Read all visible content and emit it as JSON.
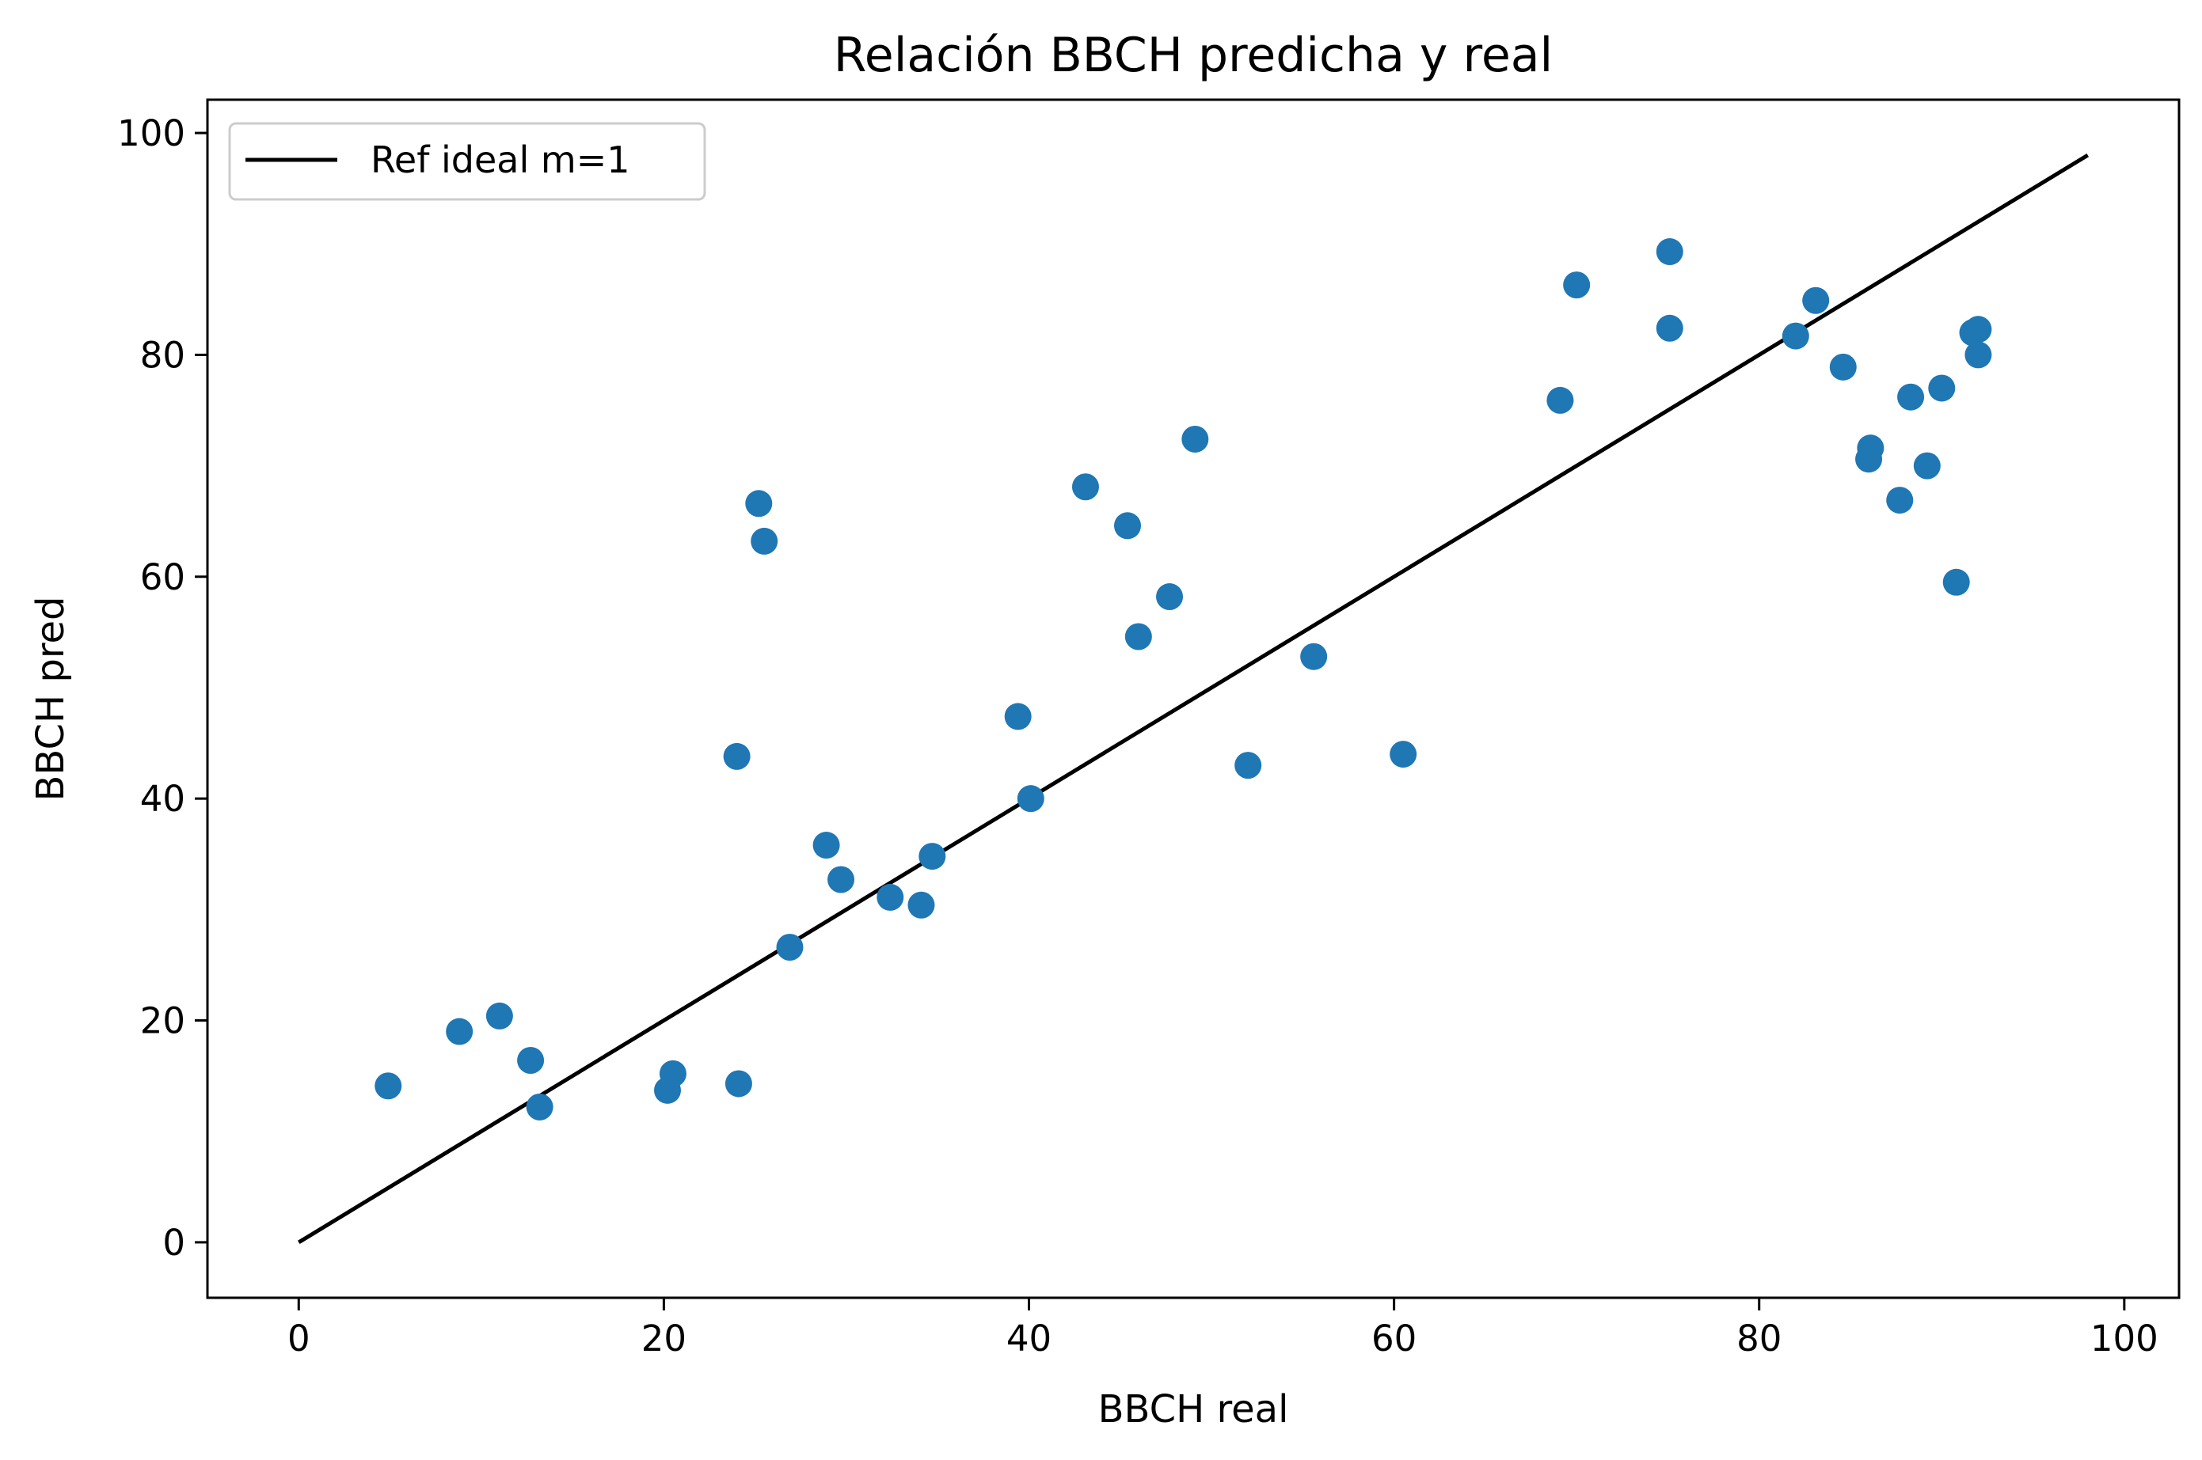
{
  "chart_data": {
    "type": "scatter",
    "title": "Relación BBCH predicha y real",
    "xlabel": "BBCH real",
    "ylabel": "BBCH pred",
    "xlim": [
      -5,
      103
    ],
    "ylim": [
      -5,
      103
    ],
    "xticks": [
      0,
      20,
      40,
      60,
      80,
      100
    ],
    "yticks": [
      0,
      20,
      40,
      60,
      80,
      100
    ],
    "xtick_labels": [
      "0",
      "20",
      "40",
      "60",
      "80",
      "100"
    ],
    "ytick_labels": [
      "0",
      "20",
      "40",
      "60",
      "80",
      "100"
    ],
    "grid": false,
    "legend": {
      "position": "top-left",
      "entries": [
        "Ref ideal m=1"
      ]
    },
    "colors": {
      "points": "#1f77b4",
      "reference_line": "#000000",
      "axes": "#000000",
      "legend_border": "#cccccc"
    },
    "reference_line": {
      "name": "Ref ideal m=1",
      "x": [
        0,
        98
      ],
      "y": [
        0,
        98
      ]
    },
    "series": [
      {
        "x": [
          4.9,
          8.8,
          11.0,
          12.7,
          13.2,
          20.2,
          20.5,
          24.1,
          24.0,
          25.2,
          25.5,
          26.9,
          28.9,
          29.7,
          32.4,
          34.1,
          34.7,
          39.4,
          40.1,
          43.1,
          45.4,
          46.0,
          47.7,
          49.1,
          52.0,
          55.6,
          60.5,
          69.1,
          70.0,
          75.1,
          75.1,
          82.0,
          83.1,
          84.6,
          86.0,
          86.1,
          87.7,
          88.3,
          89.2,
          90.0,
          90.8,
          91.7,
          92.0,
          92.0
        ],
        "y": [
          14.1,
          19.0,
          20.4,
          16.4,
          12.2,
          13.7,
          15.2,
          14.3,
          43.8,
          66.6,
          63.2,
          26.6,
          35.8,
          32.7,
          31.1,
          30.4,
          34.8,
          47.4,
          40.0,
          68.1,
          64.6,
          54.6,
          58.2,
          72.4,
          43.0,
          52.8,
          44.0,
          75.9,
          86.3,
          89.3,
          82.4,
          81.7,
          84.9,
          78.9,
          70.6,
          71.6,
          66.9,
          76.2,
          70.0,
          77.0,
          59.5,
          82.0,
          82.3,
          80.0
        ]
      }
    ]
  }
}
